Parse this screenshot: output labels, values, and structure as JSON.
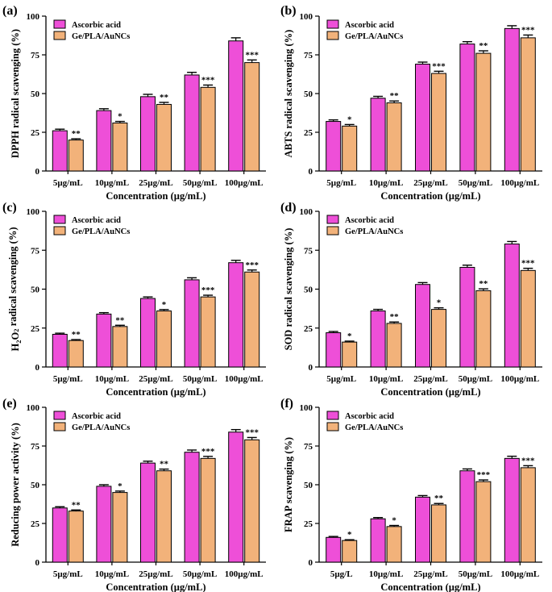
{
  "series_styles": [
    {
      "name": "Ascorbic acid",
      "color": "#ee4fd8"
    },
    {
      "name": "Ge/PLA/AuNCs",
      "color": "#f2b27a"
    }
  ],
  "axis_color": "#000000",
  "chart_data": [
    {
      "panel": "(a)",
      "type": "bar",
      "ylabel": "DPPH radical scavenging (%)",
      "xlabel": "Concentration (µg/mL)",
      "categories": [
        "5µg/mL",
        "10µg/mL",
        "25µg/mL",
        "50µg/mL",
        "100µg/mL"
      ],
      "ylim": [
        0,
        100
      ],
      "yticks": [
        0,
        25,
        50,
        75,
        100
      ],
      "legend": "top-left",
      "series": [
        {
          "name": "Ascorbic acid",
          "values": [
            26,
            39,
            48,
            62,
            84
          ],
          "errors": [
            1.0,
            1.2,
            1.5,
            1.7,
            2.0
          ]
        },
        {
          "name": "Ge/PLA/AuNCs",
          "values": [
            20,
            31,
            43,
            54,
            70
          ],
          "errors": [
            0.8,
            1.0,
            1.3,
            1.5,
            1.7
          ]
        }
      ],
      "significance": [
        "**",
        "*",
        "**",
        "***",
        "***"
      ]
    },
    {
      "panel": "(b)",
      "type": "bar",
      "ylabel": "ABTS radical scavenging (%)",
      "xlabel": "Concentration (µg/mL)",
      "categories": [
        "5µg/mL",
        "10µg/mL",
        "25µg/mL",
        "50µg/mL",
        "100µg/mL"
      ],
      "ylim": [
        0,
        100
      ],
      "yticks": [
        0,
        25,
        50,
        75,
        100
      ],
      "legend": "top-left",
      "series": [
        {
          "name": "Ascorbic acid",
          "values": [
            32,
            47,
            69,
            82,
            92
          ],
          "errors": [
            1.0,
            1.2,
            1.3,
            1.5,
            1.8
          ]
        },
        {
          "name": "Ge/PLA/AuNCs",
          "values": [
            29,
            44,
            63,
            76,
            86
          ],
          "errors": [
            1.0,
            1.2,
            1.4,
            1.6,
            1.8
          ]
        }
      ],
      "significance": [
        "*",
        "**",
        "***",
        "**",
        "***"
      ]
    },
    {
      "panel": "(c)",
      "type": "bar",
      "ylabel_parts": [
        "H",
        "2",
        "O",
        "2",
        " radical scavenging (%)"
      ],
      "xlabel": "Concentration (µg/mL)",
      "categories": [
        "5µg/mL",
        "10µg/mL",
        "25µg/mL",
        "50µg/mL",
        "100µg/mL"
      ],
      "ylim": [
        0,
        100
      ],
      "yticks": [
        0,
        25,
        50,
        75,
        100
      ],
      "legend": "top-left",
      "series": [
        {
          "name": "Ascorbic acid",
          "values": [
            21,
            34,
            44,
            56,
            67
          ],
          "errors": [
            0.7,
            0.9,
            1.0,
            1.3,
            1.5
          ]
        },
        {
          "name": "Ge/PLA/AuNCs",
          "values": [
            17,
            26,
            36,
            45,
            61
          ],
          "errors": [
            0.6,
            0.8,
            0.9,
            1.1,
            1.3
          ]
        }
      ],
      "significance": [
        "**",
        "**",
        "*",
        "***",
        "***"
      ]
    },
    {
      "panel": "(d)",
      "type": "bar",
      "ylabel": "SOD radical scavenging (%)",
      "xlabel": "Concentration (µg/mL)",
      "categories": [
        "5µg/mL",
        "10µg/mL",
        "25µg/mL",
        "50µg/mL",
        "100µg/mL"
      ],
      "ylim": [
        0,
        100
      ],
      "yticks": [
        0,
        25,
        50,
        75,
        100
      ],
      "legend": "top-left",
      "series": [
        {
          "name": "Ascorbic acid",
          "values": [
            22,
            36,
            53,
            64,
            79
          ],
          "errors": [
            0.8,
            1.0,
            1.2,
            1.4,
            1.6
          ]
        },
        {
          "name": "Ge/PLA/AuNCs",
          "values": [
            16,
            28,
            37,
            49,
            62
          ],
          "errors": [
            0.6,
            0.9,
            1.0,
            1.2,
            1.4
          ]
        }
      ],
      "significance": [
        "*",
        "**",
        "*",
        "**",
        "***"
      ]
    },
    {
      "panel": "(e)",
      "type": "bar",
      "ylabel": "Reducing power activity (%)",
      "xlabel": "Concentration (µg/mL)",
      "categories": [
        "5µg/mL",
        "10µg/mL",
        "25µg/mL",
        "50µg/mL",
        "100µg/mL"
      ],
      "ylim": [
        0,
        100
      ],
      "yticks": [
        0,
        25,
        50,
        75,
        100
      ],
      "legend": "top-left",
      "series": [
        {
          "name": "Ascorbic acid",
          "values": [
            35,
            49,
            64,
            71,
            84
          ],
          "errors": [
            0.8,
            1.0,
            1.2,
            1.4,
            1.6
          ]
        },
        {
          "name": "Ge/PLA/AuNCs",
          "values": [
            33,
            45,
            59,
            67,
            79
          ],
          "errors": [
            0.7,
            0.9,
            1.1,
            1.3,
            1.5
          ]
        }
      ],
      "significance": [
        "**",
        "*",
        "**",
        "***",
        "***"
      ]
    },
    {
      "panel": "(f)",
      "type": "bar",
      "ylabel": "FRAP scavenging (%)",
      "xlabel": "Concentration (µg/mL)",
      "categories": [
        "5µg/L",
        "10µg/mL",
        "25µg/mL",
        "50µg/mL",
        "100µg/mL"
      ],
      "ylim": [
        0,
        100
      ],
      "yticks": [
        0,
        25,
        50,
        75,
        100
      ],
      "legend": "top-left",
      "series": [
        {
          "name": "Ascorbic acid",
          "values": [
            16,
            28,
            42,
            59,
            67
          ],
          "errors": [
            0.6,
            0.8,
            1.0,
            1.2,
            1.4
          ]
        },
        {
          "name": "Ge/PLA/AuNCs",
          "values": [
            14,
            23,
            37,
            52,
            61
          ],
          "errors": [
            0.5,
            0.7,
            0.9,
            1.1,
            1.3
          ]
        }
      ],
      "significance": [
        "*",
        "*",
        "**",
        "***",
        "***"
      ]
    }
  ]
}
